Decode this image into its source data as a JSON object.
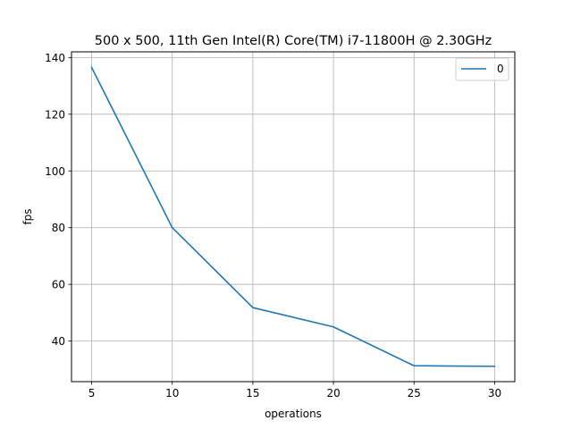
{
  "chart_data": {
    "type": "line",
    "title": "500 x 500, 11th Gen Intel(R) Core(TM) i7-11800H @ 2.30GHz",
    "xlabel": "operations",
    "ylabel": "fps",
    "xlim": [
      3.75,
      31.25
    ],
    "ylim": [
      25.7,
      142.0
    ],
    "xticks": [
      5,
      10,
      15,
      20,
      25,
      30
    ],
    "yticks": [
      40,
      60,
      80,
      100,
      120,
      140
    ],
    "grid": true,
    "legend_position": "top-right",
    "series": [
      {
        "name": "0",
        "color": "#1f77b4",
        "x": [
          5,
          10,
          15,
          20,
          25,
          30
        ],
        "y": [
          136.5,
          80.0,
          51.8,
          45.0,
          31.3,
          31.1
        ]
      }
    ]
  }
}
